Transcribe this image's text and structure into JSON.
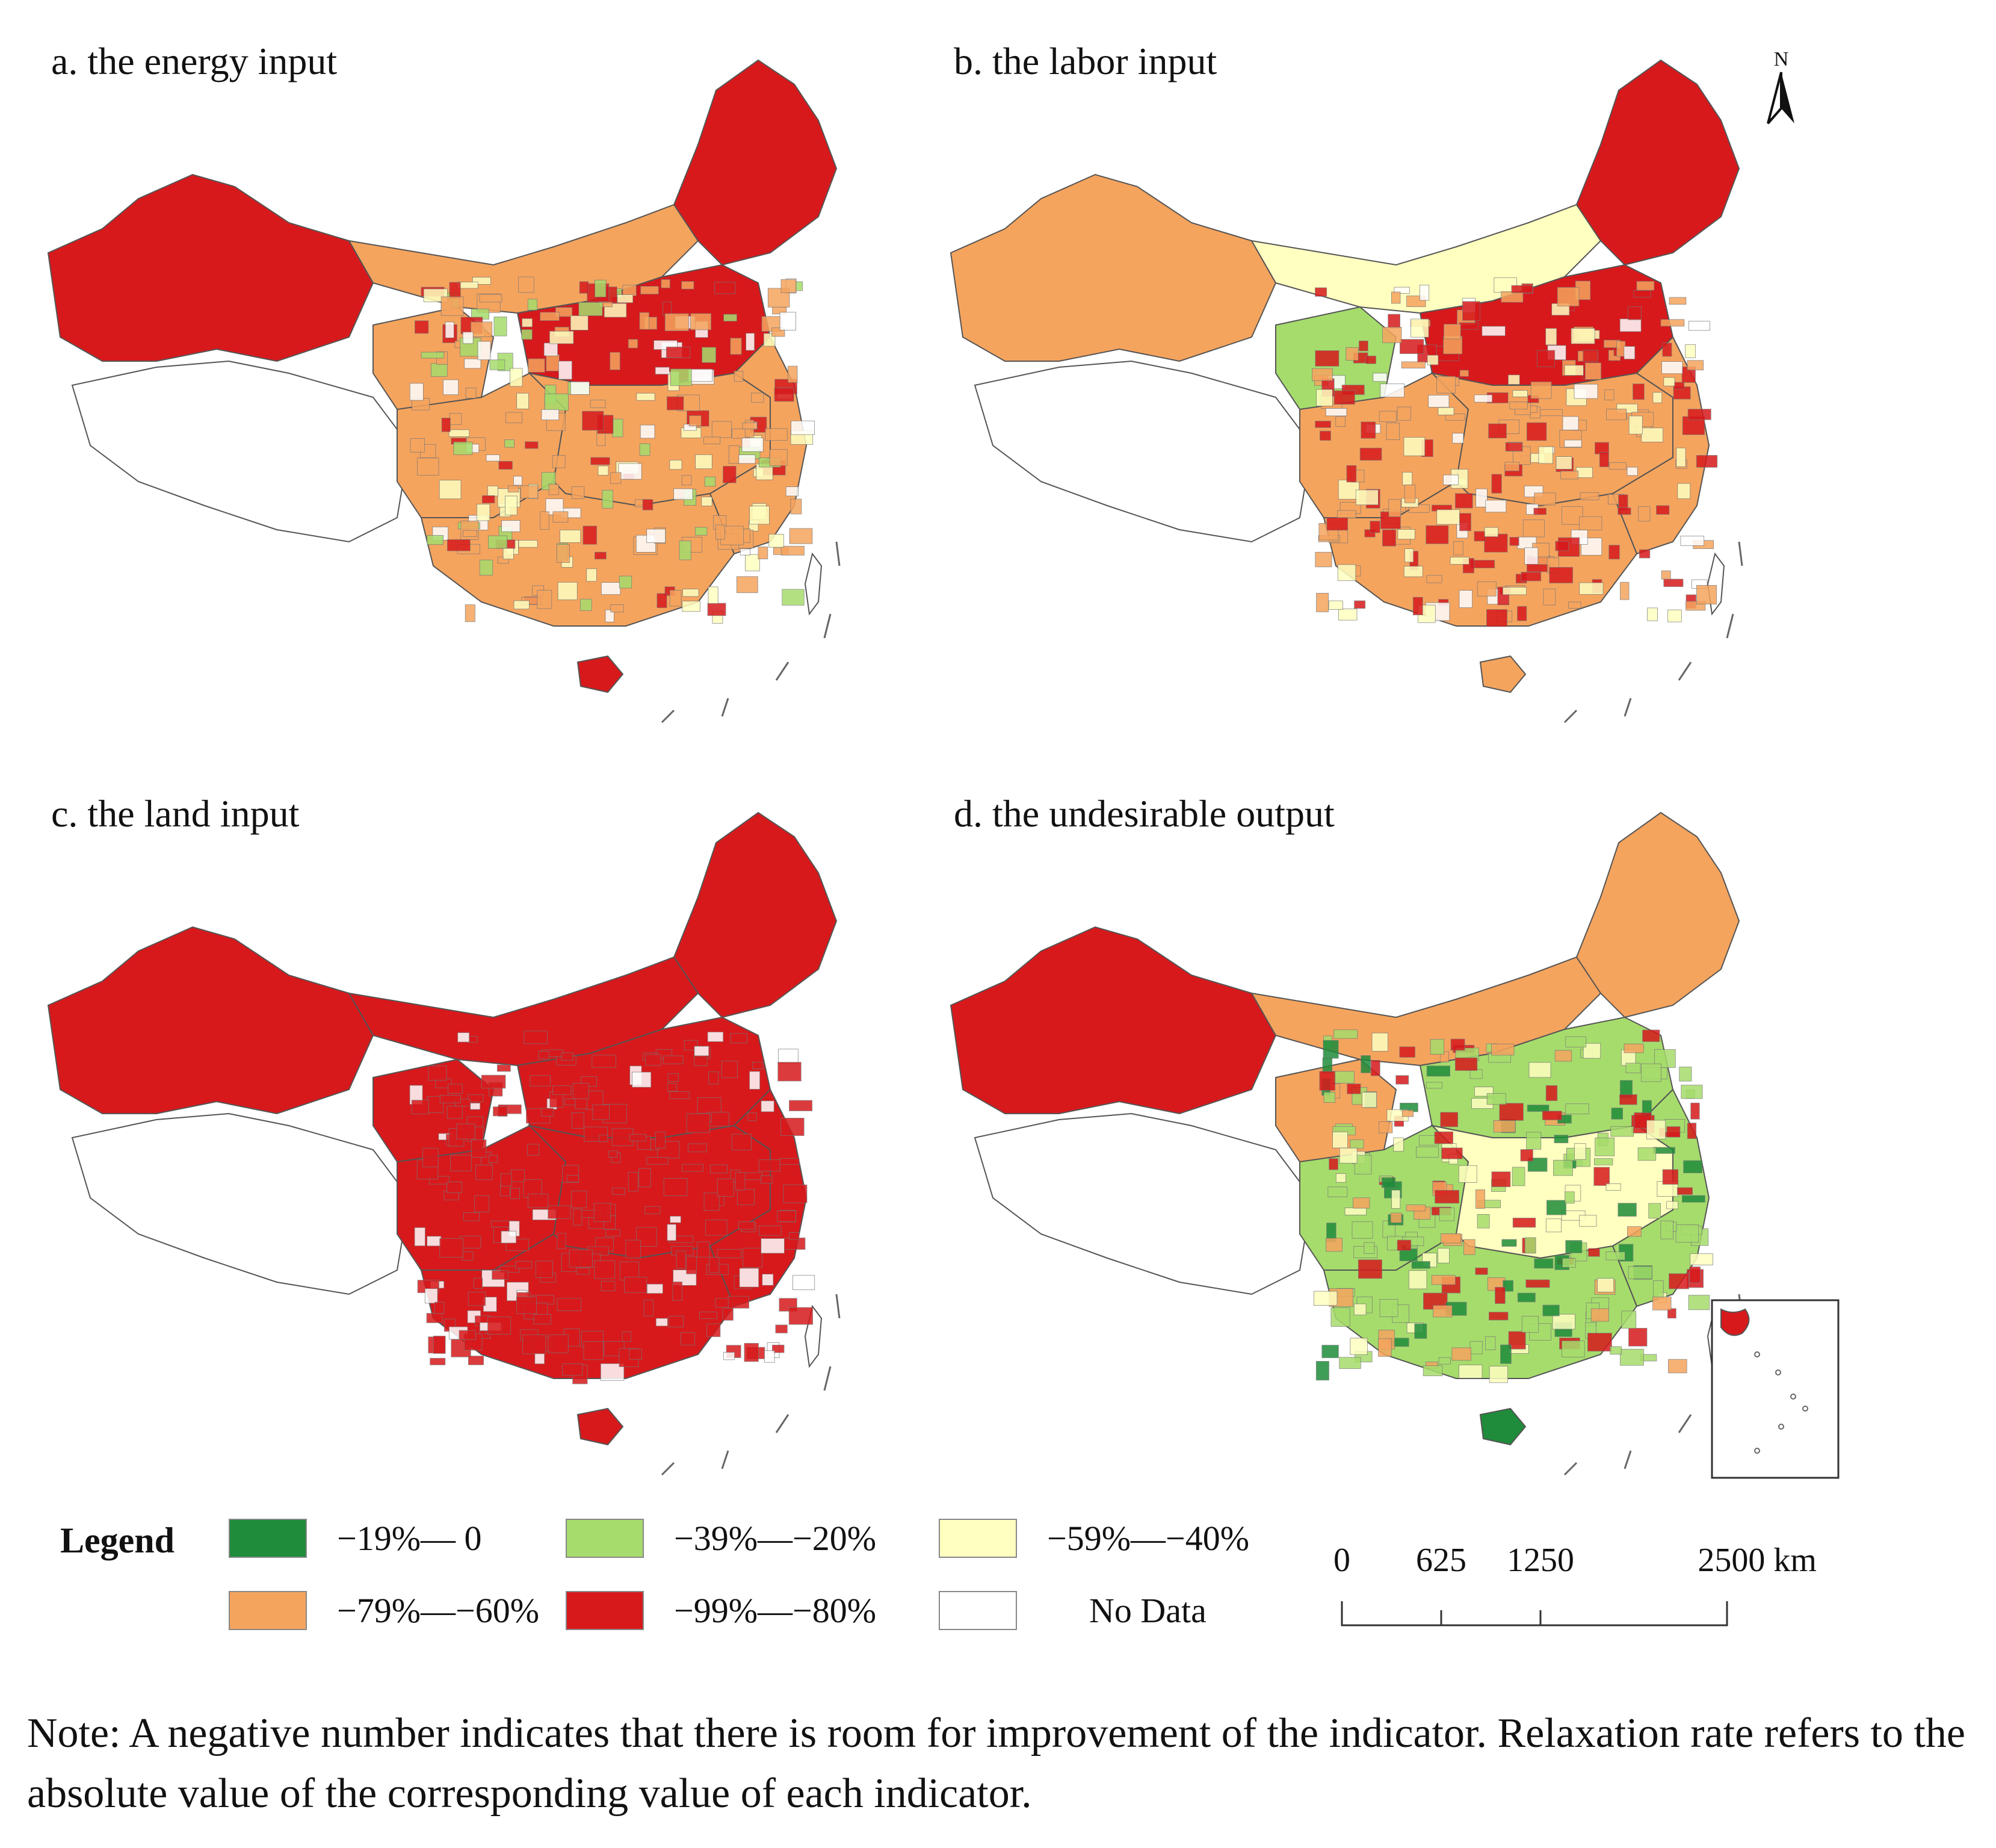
{
  "panels": [
    {
      "id": "a",
      "title": "a. the energy input"
    },
    {
      "id": "b",
      "title": "b. the labor input"
    },
    {
      "id": "c",
      "title": "c. the land input"
    },
    {
      "id": "d",
      "title": "d. the undesirable output"
    }
  ],
  "north_label": "N",
  "legend": {
    "title": "Legend",
    "items": [
      {
        "label": "−19%— 0",
        "color": "#1e8c3a"
      },
      {
        "label": "−39%—−20%",
        "color": "#a6dc6c"
      },
      {
        "label": "−59%—−40%",
        "color": "#ffffc0"
      },
      {
        "label": "−79%—−60%",
        "color": "#f5a45e"
      },
      {
        "label": "−99%—−80%",
        "color": "#d7191c"
      },
      {
        "label": "No Data",
        "color": "#ffffff"
      }
    ]
  },
  "scale_bar": {
    "ticks": [
      "0",
      "625",
      "1250",
      "2500 km"
    ]
  },
  "note": "Note: A negative number indicates that there is room for improvement of the indicator. Relaxation rate refers to the absolute value of the corresponding value of each indicator.",
  "colors": {
    "no_data_fill": "#ffffff",
    "border": "#555555"
  }
}
